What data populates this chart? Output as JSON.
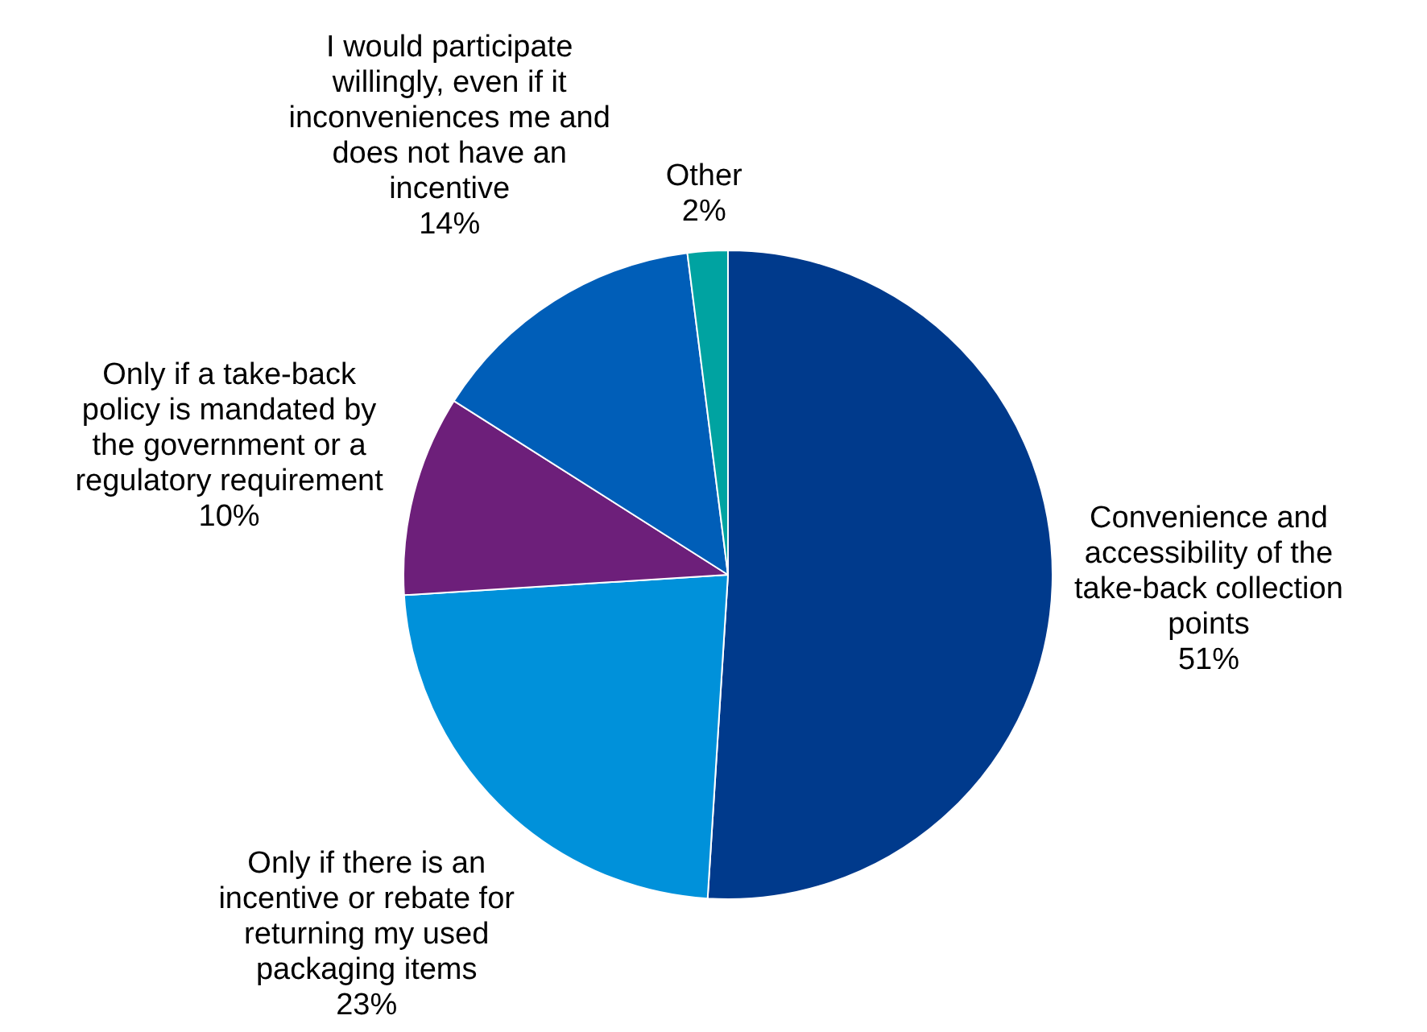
{
  "chart_data": {
    "type": "pie",
    "categories": [
      "Convenience and accessibility of the take-back collection points",
      "Only if there is an incentive or rebate for returning my used packaging items",
      "Only if a take-back policy is mandated by the government or a regulatory requirement",
      "I would participate willingly, even if it inconveniences me and does not have an incentive",
      "Other"
    ],
    "values": [
      51,
      23,
      10,
      14,
      2
    ],
    "value_labels": [
      "51%",
      "23%",
      "10%",
      "14%",
      "2%"
    ],
    "colors": [
      "#003a8c",
      "#0091da",
      "#6d1f7a",
      "#005eb8",
      "#00a3a1"
    ],
    "legend": false
  }
}
